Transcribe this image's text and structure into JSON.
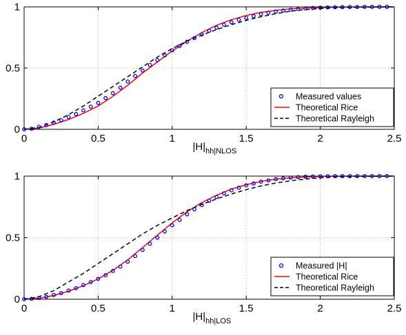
{
  "colors": {
    "measured": "#0000ff",
    "rice": "#ff0000",
    "rayleigh": "#000000",
    "grid": "#8c8c8c",
    "axes": "#000000"
  },
  "chart_data": [
    {
      "type": "line",
      "xlabel_main": "|H|",
      "xlabel_sub": "hh|NLOS",
      "ylabel": "",
      "title": "",
      "xlim": [
        0,
        2.5
      ],
      "ylim": [
        0,
        1
      ],
      "xticks": [
        0,
        0.5,
        1,
        1.5,
        2,
        2.5
      ],
      "xtick_labels": [
        "0",
        "0.5",
        "1",
        "1.5",
        "2",
        "2.5"
      ],
      "yticks": [
        0,
        0.5,
        1
      ],
      "ytick_labels": [
        "0",
        "0.5",
        "1"
      ],
      "grid": true,
      "legend_position": "lower-right",
      "measured": {
        "name": "Measured values",
        "x": [
          0.0,
          0.05,
          0.1,
          0.15,
          0.2,
          0.25,
          0.3,
          0.35,
          0.4,
          0.45,
          0.5,
          0.55,
          0.6,
          0.65,
          0.7,
          0.75,
          0.8,
          0.85,
          0.9,
          0.95,
          1.0,
          1.05,
          1.1,
          1.15,
          1.2,
          1.25,
          1.3,
          1.35,
          1.4,
          1.45,
          1.5,
          1.55,
          1.6,
          1.65,
          1.7,
          1.75,
          1.8,
          1.85,
          1.9,
          1.95,
          2.0,
          2.05,
          2.1,
          2.15,
          2.2,
          2.25,
          2.3,
          2.35,
          2.4,
          2.45
        ],
        "y": [
          0.0,
          0.005,
          0.02,
          0.035,
          0.055,
          0.075,
          0.1,
          0.125,
          0.155,
          0.185,
          0.215,
          0.255,
          0.295,
          0.34,
          0.39,
          0.435,
          0.48,
          0.525,
          0.565,
          0.605,
          0.645,
          0.68,
          0.715,
          0.745,
          0.775,
          0.805,
          0.83,
          0.855,
          0.875,
          0.895,
          0.91,
          0.925,
          0.94,
          0.952,
          0.962,
          0.97,
          0.977,
          0.983,
          0.988,
          0.991,
          0.994,
          0.996,
          0.997,
          0.998,
          0.999,
          0.999,
          1.0,
          1.0,
          1.0,
          1.0
        ]
      },
      "series": [
        {
          "name": "Theoretical Rice",
          "x": [
            0.0,
            0.1,
            0.2,
            0.3,
            0.4,
            0.5,
            0.6,
            0.7,
            0.8,
            0.9,
            1.0,
            1.1,
            1.2,
            1.3,
            1.4,
            1.5,
            1.6,
            1.7,
            1.8,
            1.9,
            2.0,
            2.1,
            2.2,
            2.3,
            2.4,
            2.5
          ],
          "y": [
            0.0,
            0.01,
            0.04,
            0.08,
            0.13,
            0.19,
            0.27,
            0.36,
            0.46,
            0.55,
            0.64,
            0.72,
            0.79,
            0.85,
            0.895,
            0.93,
            0.955,
            0.972,
            0.984,
            0.991,
            0.995,
            0.998,
            0.999,
            1.0,
            1.0,
            1.0
          ]
        },
        {
          "name": "Theoretical Rayleigh",
          "x": [
            0.0,
            0.1,
            0.2,
            0.3,
            0.4,
            0.5,
            0.6,
            0.7,
            0.8,
            0.9,
            1.0,
            1.1,
            1.2,
            1.3,
            1.4,
            1.5,
            1.6,
            1.7,
            1.8,
            1.9,
            2.0,
            2.1,
            2.2,
            2.3,
            2.4,
            2.5
          ],
          "y": [
            0.0,
            0.015,
            0.06,
            0.12,
            0.19,
            0.27,
            0.35,
            0.43,
            0.51,
            0.59,
            0.66,
            0.72,
            0.77,
            0.815,
            0.855,
            0.89,
            0.92,
            0.945,
            0.965,
            0.978,
            0.987,
            0.993,
            0.996,
            0.998,
            0.999,
            1.0
          ]
        }
      ]
    },
    {
      "type": "line",
      "xlabel_main": "|H|",
      "xlabel_sub": "hh|LOS",
      "ylabel": "",
      "title": "",
      "xlim": [
        0,
        2.5
      ],
      "ylim": [
        0,
        1
      ],
      "xticks": [
        0,
        0.5,
        1,
        1.5,
        2,
        2.5
      ],
      "xtick_labels": [
        "0",
        "0.5",
        "1",
        "1.5",
        "2",
        "2.5"
      ],
      "yticks": [
        0,
        0.5,
        1
      ],
      "ytick_labels": [
        "0",
        "0.5",
        "1"
      ],
      "grid": true,
      "legend_position": "lower-right",
      "measured": {
        "name": "Measured |H|",
        "x": [
          0.0,
          0.05,
          0.1,
          0.15,
          0.2,
          0.25,
          0.3,
          0.35,
          0.4,
          0.45,
          0.5,
          0.55,
          0.6,
          0.65,
          0.7,
          0.75,
          0.8,
          0.85,
          0.9,
          0.95,
          1.0,
          1.05,
          1.1,
          1.15,
          1.2,
          1.25,
          1.3,
          1.35,
          1.4,
          1.45,
          1.5,
          1.55,
          1.6,
          1.65,
          1.7,
          1.75,
          1.8,
          1.85,
          1.9,
          1.95,
          2.0,
          2.05,
          2.1,
          2.15,
          2.2,
          2.25,
          2.3,
          2.35,
          2.4,
          2.45
        ],
        "y": [
          0.0,
          0.003,
          0.01,
          0.02,
          0.035,
          0.05,
          0.07,
          0.09,
          0.115,
          0.14,
          0.165,
          0.195,
          0.23,
          0.265,
          0.305,
          0.35,
          0.4,
          0.45,
          0.5,
          0.55,
          0.6,
          0.645,
          0.69,
          0.73,
          0.765,
          0.8,
          0.83,
          0.86,
          0.885,
          0.905,
          0.925,
          0.94,
          0.955,
          0.965,
          0.975,
          0.982,
          0.988,
          0.992,
          0.995,
          0.997,
          0.998,
          0.999,
          1.0,
          1.0,
          1.0,
          1.0,
          1.0,
          1.0,
          1.0,
          1.0
        ]
      },
      "series": [
        {
          "name": "Theoretical Rice",
          "x": [
            0.0,
            0.1,
            0.2,
            0.3,
            0.4,
            0.5,
            0.6,
            0.7,
            0.8,
            0.9,
            1.0,
            1.1,
            1.2,
            1.3,
            1.4,
            1.5,
            1.6,
            1.7,
            1.8,
            1.9,
            2.0,
            2.1,
            2.2,
            2.3,
            2.4,
            2.5
          ],
          "y": [
            0.0,
            0.008,
            0.03,
            0.065,
            0.11,
            0.165,
            0.235,
            0.32,
            0.42,
            0.52,
            0.62,
            0.71,
            0.785,
            0.845,
            0.895,
            0.93,
            0.957,
            0.975,
            0.986,
            0.993,
            0.997,
            0.999,
            1.0,
            1.0,
            1.0,
            1.0
          ]
        },
        {
          "name": "Theoretical Rayleigh",
          "x": [
            0.0,
            0.1,
            0.2,
            0.3,
            0.4,
            0.5,
            0.6,
            0.7,
            0.8,
            0.9,
            1.0,
            1.1,
            1.2,
            1.3,
            1.4,
            1.5,
            1.6,
            1.7,
            1.8,
            1.9,
            2.0,
            2.1,
            2.2,
            2.3,
            2.4,
            2.5
          ],
          "y": [
            0.0,
            0.02,
            0.07,
            0.14,
            0.21,
            0.29,
            0.37,
            0.45,
            0.53,
            0.6,
            0.66,
            0.72,
            0.77,
            0.815,
            0.855,
            0.89,
            0.92,
            0.944,
            0.962,
            0.976,
            0.986,
            0.992,
            0.996,
            0.998,
            0.999,
            1.0
          ]
        }
      ]
    }
  ]
}
